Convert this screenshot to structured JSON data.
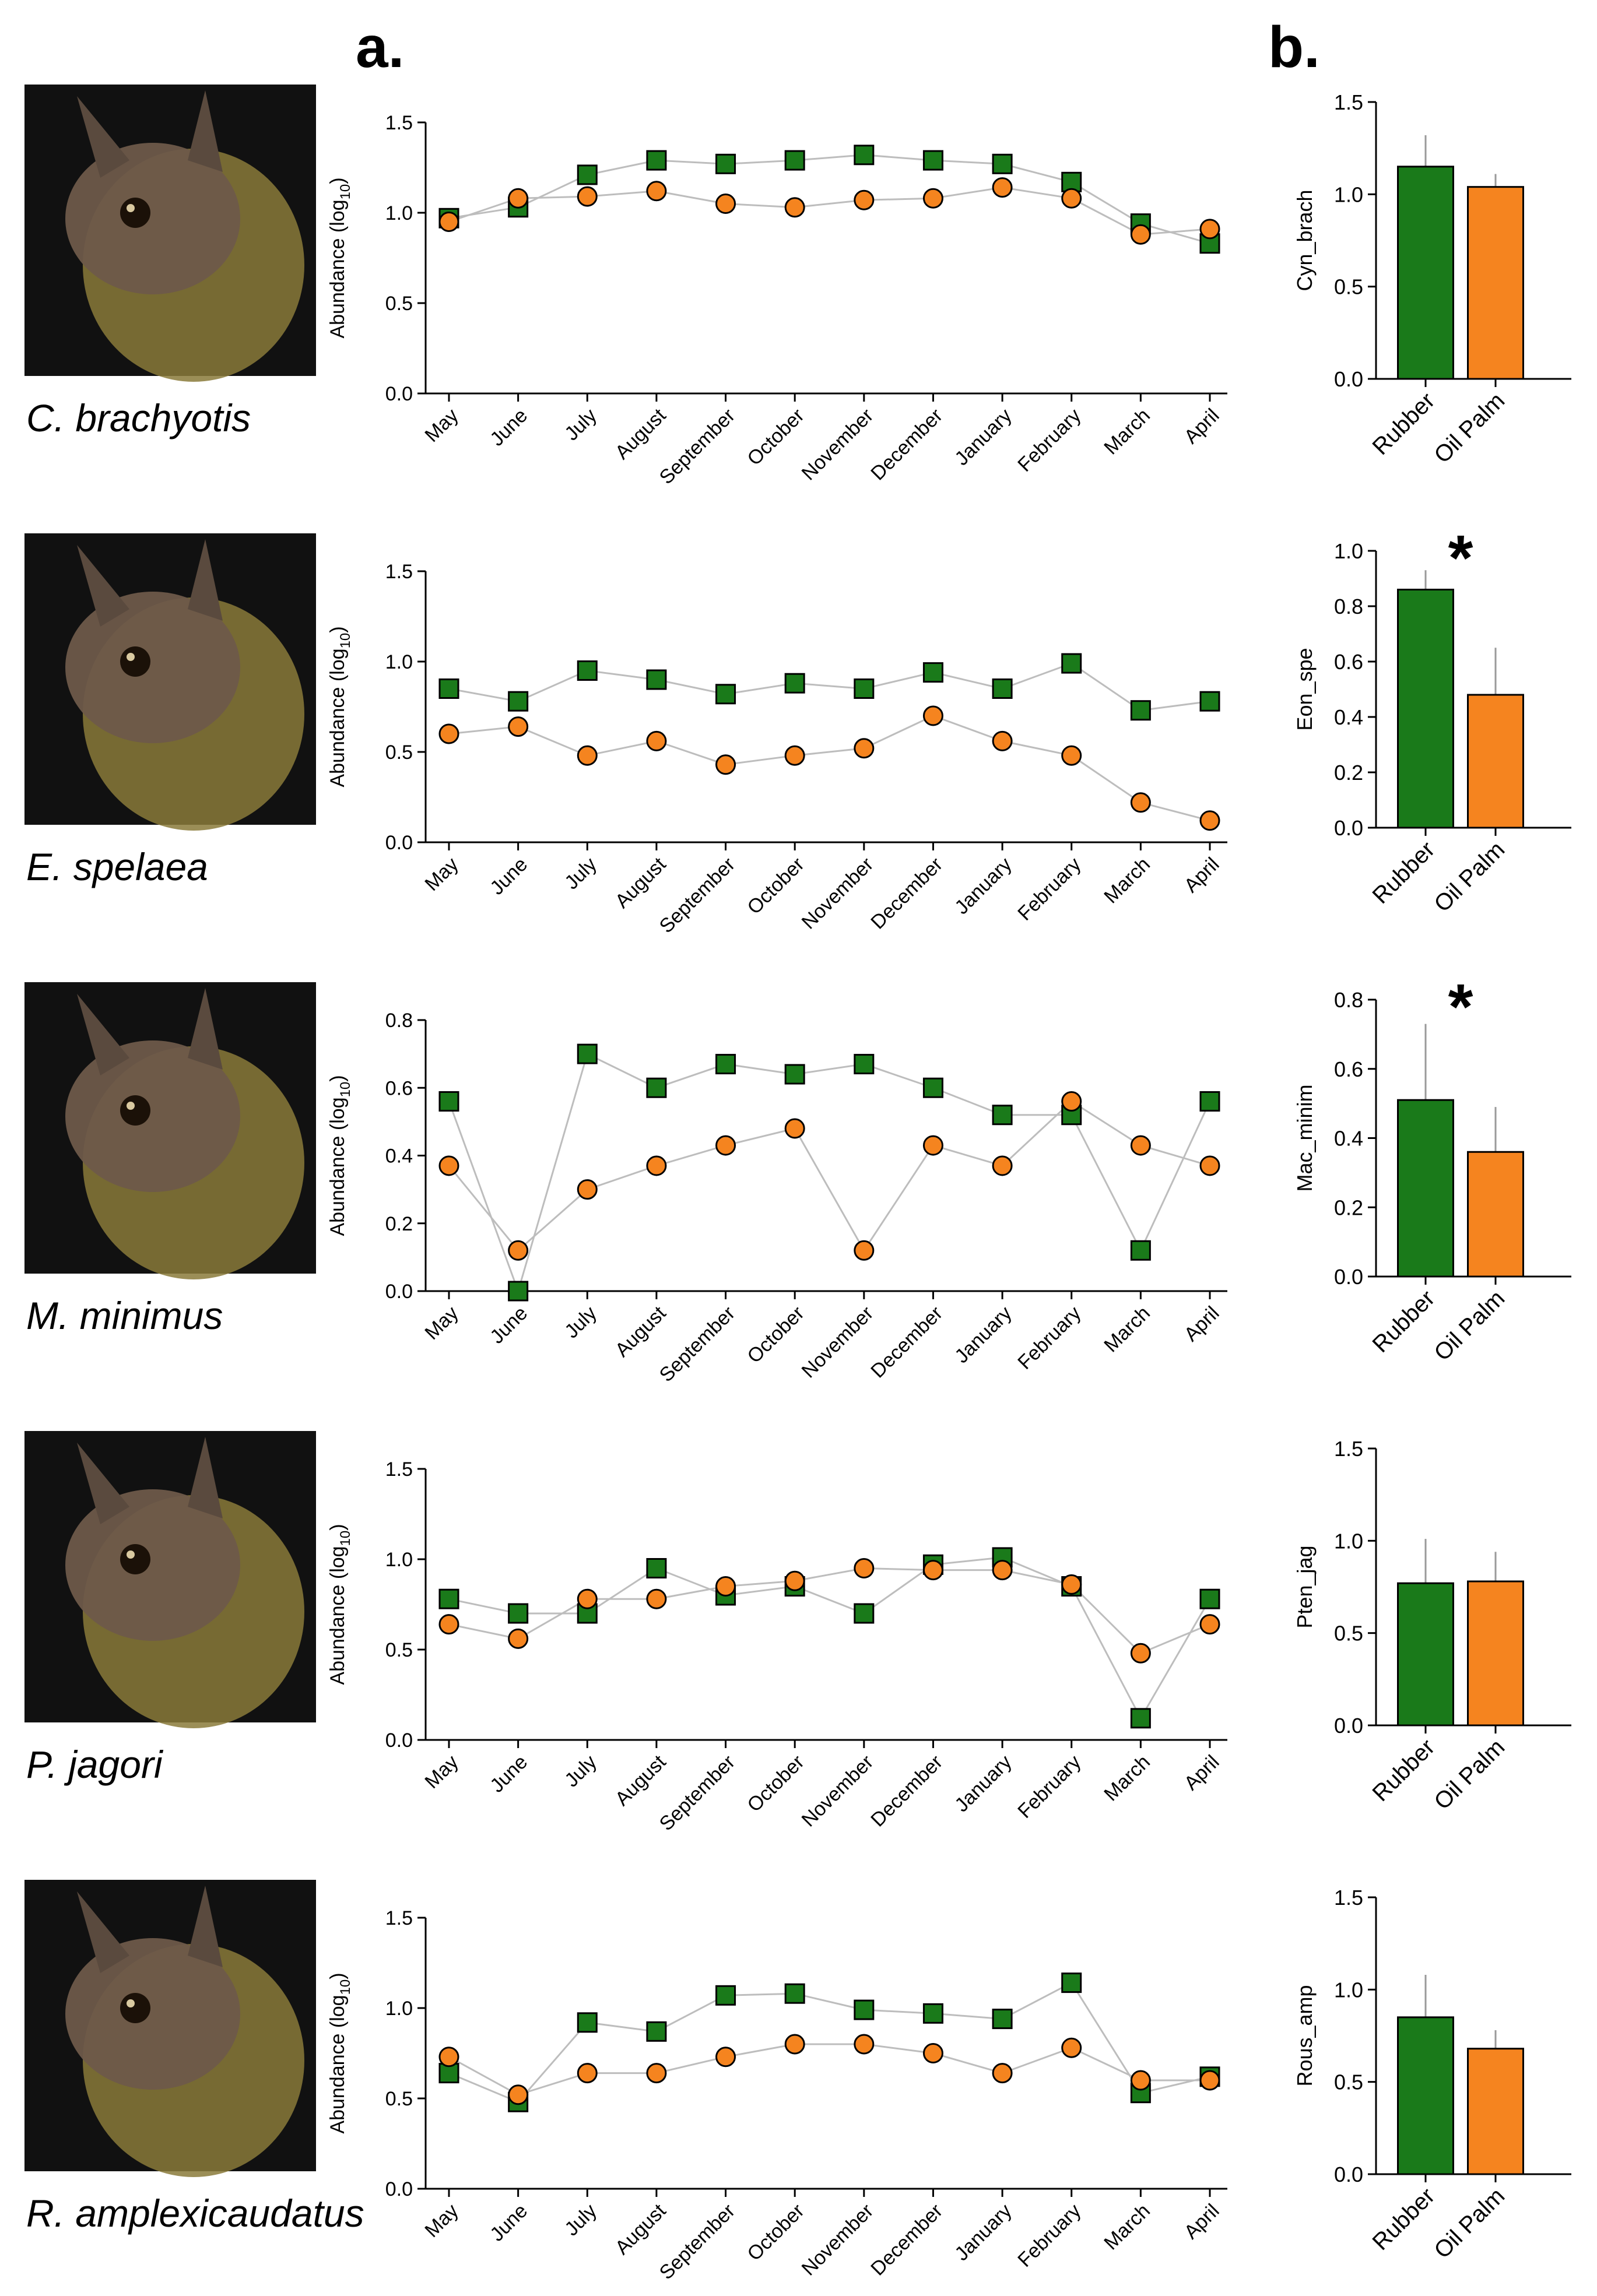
{
  "panel_labels": {
    "a": "a.",
    "b": "b."
  },
  "months": [
    "May",
    "June",
    "July",
    "August",
    "September",
    "October",
    "November",
    "December",
    "January",
    "February",
    "March",
    "April"
  ],
  "bar_categories": [
    "Rubber",
    "Oil Palm"
  ],
  "colors": {
    "rubber": "#1a7a1a",
    "oil_palm": "#f5841f",
    "line": "#bdbdbd",
    "axis": "#000000",
    "photo_bg": "#111111"
  },
  "series_names": [
    "Rubber",
    "Oil Palm"
  ],
  "line_ylabel": "Abundance (log",
  "line_ylabel_sub": "10",
  "line_ylabel_tail": ")",
  "species": [
    {
      "name": "C. brachyotis",
      "bar_ylabel": "Cyn_brach",
      "significant": false,
      "sig_mark": "",
      "photo_icon": "bat-photo-icon",
      "chart_data": {
        "type": "line",
        "x": [
          "May",
          "June",
          "July",
          "August",
          "September",
          "October",
          "November",
          "December",
          "January",
          "February",
          "March",
          "April"
        ],
        "ylabel": "Abundance (log10)",
        "ylim": [
          0,
          1.5
        ],
        "yticks": [
          "0.0",
          "0.5",
          "1.0",
          "1.5"
        ],
        "yticks_val": [
          0,
          0.5,
          1.0,
          1.5
        ],
        "series": [
          {
            "name": "Rubber",
            "marker": "square",
            "values": [
              0.97,
              1.03,
              1.21,
              1.29,
              1.27,
              1.29,
              1.32,
              1.29,
              1.27,
              1.17,
              0.94,
              0.83
            ]
          },
          {
            "name": "Oil Palm",
            "marker": "circle",
            "values": [
              0.95,
              1.08,
              1.09,
              1.12,
              1.05,
              1.03,
              1.07,
              1.08,
              1.14,
              1.08,
              0.88,
              0.91
            ]
          }
        ]
      },
      "bar_data": {
        "type": "bar",
        "categories": [
          "Rubber",
          "Oil Palm"
        ],
        "values": [
          1.15,
          1.04
        ],
        "errors": [
          0.17,
          0.07
        ],
        "ylabel": "Cyn_brach",
        "ylim": [
          0,
          1.5
        ],
        "yticks": [
          "0.0",
          "0.5",
          "1.0",
          "1.5"
        ],
        "yticks_val": [
          0,
          0.5,
          1.0,
          1.5
        ]
      }
    },
    {
      "name": "E. spelaea",
      "bar_ylabel": "Eon_spe",
      "significant": true,
      "sig_mark": "*",
      "photo_icon": "bat-photo-icon",
      "chart_data": {
        "type": "line",
        "x": [
          "May",
          "June",
          "July",
          "August",
          "September",
          "October",
          "November",
          "December",
          "January",
          "February",
          "March",
          "April"
        ],
        "ylabel": "Abundance (log10)",
        "ylim": [
          0,
          1.5
        ],
        "yticks": [
          "0.0",
          "0.5",
          "1.0",
          "1.5"
        ],
        "yticks_val": [
          0,
          0.5,
          1.0,
          1.5
        ],
        "series": [
          {
            "name": "Rubber",
            "marker": "square",
            "values": [
              0.85,
              0.78,
              0.95,
              0.9,
              0.82,
              0.88,
              0.85,
              0.94,
              0.85,
              0.99,
              0.73,
              0.78
            ]
          },
          {
            "name": "Oil Palm",
            "marker": "circle",
            "values": [
              0.6,
              0.64,
              0.48,
              0.56,
              0.43,
              0.48,
              0.52,
              0.7,
              0.56,
              0.48,
              0.22,
              0.12
            ]
          }
        ]
      },
      "bar_data": {
        "type": "bar",
        "categories": [
          "Rubber",
          "Oil Palm"
        ],
        "values": [
          0.86,
          0.48
        ],
        "errors": [
          0.07,
          0.17
        ],
        "ylabel": "Eon_spe",
        "ylim": [
          0,
          1.0
        ],
        "yticks": [
          "0.0",
          "0.2",
          "0.4",
          "0.6",
          "0.8",
          "1.0"
        ],
        "yticks_val": [
          0,
          0.2,
          0.4,
          0.6,
          0.8,
          1.0
        ]
      }
    },
    {
      "name": "M. minimus",
      "bar_ylabel": "Mac_minim",
      "significant": true,
      "sig_mark": "*",
      "photo_icon": "bat-photo-icon",
      "chart_data": {
        "type": "line",
        "x": [
          "May",
          "June",
          "July",
          "August",
          "September",
          "October",
          "November",
          "December",
          "January",
          "February",
          "March",
          "April"
        ],
        "ylabel": "Abundance (log10)",
        "ylim": [
          0,
          0.8
        ],
        "yticks": [
          "0.0",
          "0.2",
          "0.4",
          "0.6",
          "0.8"
        ],
        "yticks_val": [
          0,
          0.2,
          0.4,
          0.6,
          0.8
        ],
        "series": [
          {
            "name": "Rubber",
            "marker": "square",
            "values": [
              0.56,
              0.0,
              0.7,
              0.6,
              0.67,
              0.64,
              0.67,
              0.6,
              0.52,
              0.52,
              0.12,
              0.56
            ]
          },
          {
            "name": "Oil Palm",
            "marker": "circle",
            "values": [
              0.37,
              0.12,
              0.3,
              0.37,
              0.43,
              0.48,
              0.12,
              0.43,
              0.37,
              0.56,
              0.43,
              0.37
            ]
          }
        ]
      },
      "bar_data": {
        "type": "bar",
        "categories": [
          "Rubber",
          "Oil Palm"
        ],
        "values": [
          0.51,
          0.36
        ],
        "errors": [
          0.22,
          0.13
        ],
        "ylabel": "Mac_minim",
        "ylim": [
          0,
          0.8
        ],
        "yticks": [
          "0.0",
          "0.2",
          "0.4",
          "0.6",
          "0.8"
        ],
        "yticks_val": [
          0,
          0.2,
          0.4,
          0.6,
          0.8
        ]
      }
    },
    {
      "name": "P. jagori",
      "bar_ylabel": "Pten_jag",
      "significant": false,
      "sig_mark": "",
      "photo_icon": "bat-photo-icon",
      "chart_data": {
        "type": "line",
        "x": [
          "May",
          "June",
          "July",
          "August",
          "September",
          "October",
          "November",
          "December",
          "January",
          "February",
          "March",
          "April"
        ],
        "ylabel": "Abundance (log10)",
        "ylim": [
          0,
          1.5
        ],
        "yticks": [
          "0.0",
          "0.5",
          "1.0",
          "1.5"
        ],
        "yticks_val": [
          0,
          0.5,
          1.0,
          1.5
        ],
        "series": [
          {
            "name": "Rubber",
            "marker": "square",
            "values": [
              0.78,
              0.7,
              0.7,
              0.95,
              0.8,
              0.85,
              0.7,
              0.97,
              1.01,
              0.85,
              0.12,
              0.78
            ]
          },
          {
            "name": "Oil Palm",
            "marker": "circle",
            "values": [
              0.64,
              0.56,
              0.78,
              0.78,
              0.85,
              0.88,
              0.95,
              0.94,
              0.94,
              0.86,
              0.48,
              0.64
            ]
          }
        ]
      },
      "bar_data": {
        "type": "bar",
        "categories": [
          "Rubber",
          "Oil Palm"
        ],
        "values": [
          0.77,
          0.78
        ],
        "errors": [
          0.24,
          0.16
        ],
        "ylabel": "Pten_jag",
        "ylim": [
          0,
          1.5
        ],
        "yticks": [
          "0.0",
          "0.5",
          "1.0",
          "1.5"
        ],
        "yticks_val": [
          0,
          0.5,
          1.0,
          1.5
        ]
      }
    },
    {
      "name": "R. amplexicaudatus",
      "bar_ylabel": "Rous_amp",
      "significant": false,
      "sig_mark": "",
      "photo_icon": "bat-photo-icon",
      "chart_data": {
        "type": "line",
        "x": [
          "May",
          "June",
          "July",
          "August",
          "September",
          "October",
          "November",
          "December",
          "January",
          "February",
          "March",
          "April"
        ],
        "ylabel": "Abundance (log10)",
        "ylim": [
          0,
          1.5
        ],
        "yticks": [
          "0.0",
          "0.5",
          "1.0",
          "1.5"
        ],
        "yticks_val": [
          0,
          0.5,
          1.0,
          1.5
        ],
        "series": [
          {
            "name": "Rubber",
            "marker": "square",
            "values": [
              0.64,
              0.48,
              0.92,
              0.87,
              1.07,
              1.08,
              0.99,
              0.97,
              0.94,
              1.14,
              0.53,
              0.62
            ]
          },
          {
            "name": "Oil Palm",
            "marker": "circle",
            "values": [
              0.73,
              0.52,
              0.64,
              0.64,
              0.73,
              0.8,
              0.8,
              0.75,
              0.64,
              0.78,
              0.6,
              0.6
            ]
          }
        ]
      },
      "bar_data": {
        "type": "bar",
        "categories": [
          "Rubber",
          "Oil Palm"
        ],
        "values": [
          0.85,
          0.68
        ],
        "errors": [
          0.23,
          0.1
        ],
        "ylabel": "Rous_amp",
        "ylim": [
          0,
          1.5
        ],
        "yticks": [
          "0.0",
          "0.5",
          "1.0",
          "1.5"
        ],
        "yticks_val": [
          0,
          0.5,
          1.0,
          1.5
        ]
      }
    }
  ]
}
